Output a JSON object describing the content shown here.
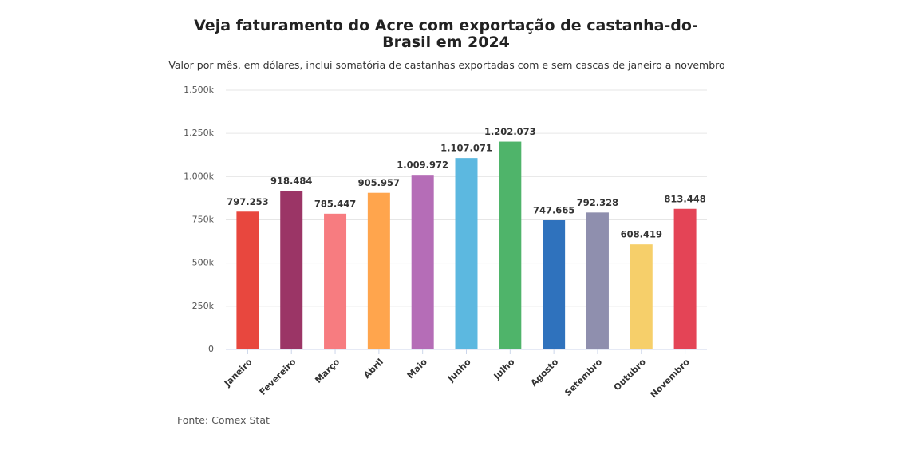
{
  "chart_data": {
    "type": "bar",
    "title": "Veja faturamento do Acre com exportação de castanha-do-Brasil em 2024",
    "subtitle": "Valor por mês, em dólares, inclui somatória de castanhas exportadas com e sem cascas de janeiro a novembro",
    "source": "Fonte: Comex Stat",
    "categories": [
      "Janeiro",
      "Fevereiro",
      "Março",
      "Abril",
      "Maio",
      "Junho",
      "Julho",
      "Agosto",
      "Setembro",
      "Outubro",
      "Novembro"
    ],
    "values": [
      797253,
      918484,
      785447,
      905957,
      1009972,
      1107071,
      1202073,
      747665,
      792328,
      608419,
      813448
    ],
    "value_labels": [
      "797.253",
      "918.484",
      "785.447",
      "905.957",
      "1.009.972",
      "1.107.071",
      "1.202.073",
      "747.665",
      "792.328",
      "608.419",
      "813.448"
    ],
    "colors": [
      "#e8473e",
      "#9b3566",
      "#f77c80",
      "#ffa54d",
      "#b56db7",
      "#5cb8e0",
      "#4fb46a",
      "#2f72bd",
      "#8f8fae",
      "#f6cf6a",
      "#e44456"
    ],
    "ylim": [
      0,
      1500000
    ],
    "yticks": [
      0,
      {
        "value": 250000,
        "label": "250k"
      },
      {
        "value": 500000,
        "label": "500k"
      },
      {
        "value": 750000,
        "label": "750k"
      },
      {
        "value": 1000000,
        "label": "1.000k"
      },
      {
        "value": 1250000,
        "label": "1.250k"
      },
      {
        "value": 1500000,
        "label": "1.500k"
      }
    ],
    "grid": true
  }
}
